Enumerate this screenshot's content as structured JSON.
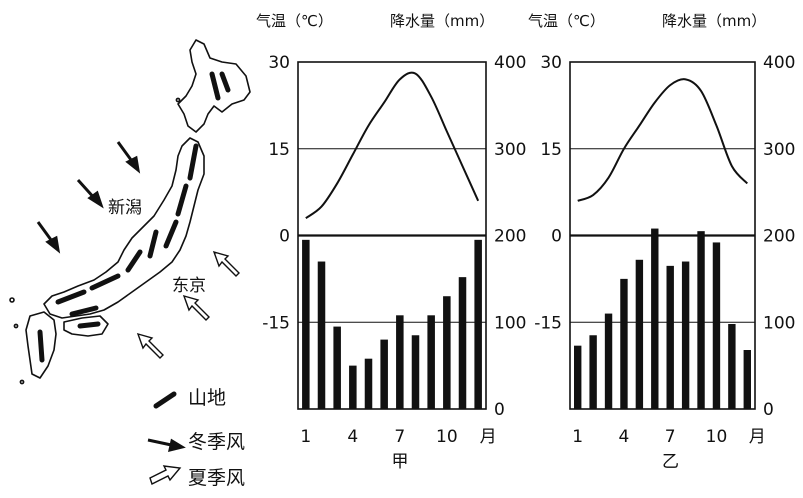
{
  "map": {
    "city_niigata": "新潟",
    "city_tokyo": "东京",
    "legend": {
      "mountain": "山地",
      "winter_monsoon": "冬季风",
      "summer_monsoon": "夏季风"
    }
  },
  "chart_data": [
    {
      "type": "bar+line",
      "title": "甲",
      "temp_header": "气温（℃）",
      "precip_header": "降水量（mm）",
      "temp_ticks": [
        "30",
        "15",
        "0",
        "-15"
      ],
      "precip_ticks": [
        "400",
        "300",
        "200",
        "100",
        "0"
      ],
      "x_ticks": [
        "1",
        "4",
        "7",
        "10"
      ],
      "x_unit": "月",
      "months": [
        1,
        2,
        3,
        4,
        5,
        6,
        7,
        8,
        9,
        10,
        11,
        12
      ],
      "temperature": [
        3,
        5,
        9,
        14,
        19,
        23,
        27,
        28,
        24,
        18,
        12,
        6
      ],
      "precipitation": [
        195,
        170,
        95,
        50,
        58,
        80,
        108,
        85,
        108,
        130,
        152,
        195
      ],
      "temp_lim": [
        -30,
        30
      ],
      "precip_lim": [
        0,
        400
      ]
    },
    {
      "type": "bar+line",
      "title": "乙",
      "temp_header": "气温（℃）",
      "precip_header": "降水量（mm）",
      "temp_ticks": [
        "30",
        "15",
        "0",
        "-15"
      ],
      "precip_ticks": [
        "400",
        "300",
        "200",
        "100",
        "0"
      ],
      "x_ticks": [
        "1",
        "4",
        "7",
        "10"
      ],
      "x_unit": "月",
      "months": [
        1,
        2,
        3,
        4,
        5,
        6,
        7,
        8,
        9,
        10,
        11,
        12
      ],
      "temperature": [
        6,
        7,
        10,
        15,
        19,
        23,
        26,
        27,
        25,
        19,
        12,
        9
      ],
      "precipitation": [
        73,
        85,
        110,
        150,
        172,
        208,
        165,
        170,
        205,
        192,
        98,
        68
      ],
      "temp_lim": [
        -30,
        30
      ],
      "precip_lim": [
        0,
        400
      ]
    }
  ]
}
